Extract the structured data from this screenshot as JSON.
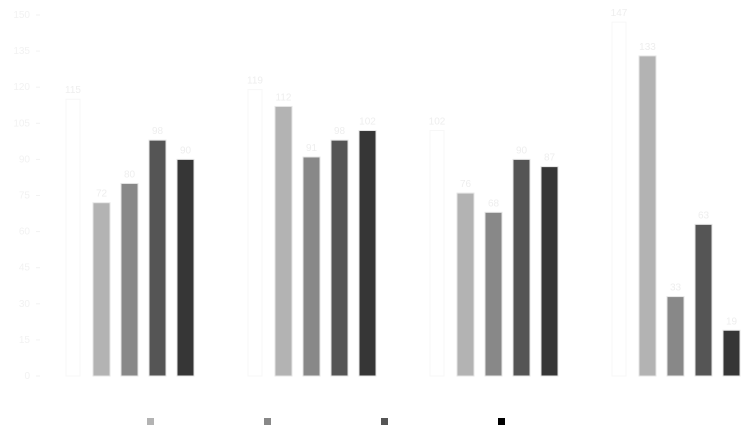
{
  "chart_data": {
    "type": "bar",
    "title": "",
    "xlabel": "",
    "ylabel": "",
    "ylim": [
      0,
      150
    ],
    "yticks": [
      0,
      15,
      30,
      45,
      60,
      75,
      90,
      105,
      120,
      135,
      150
    ],
    "grid": false,
    "legend_placement": "bottom",
    "categories": [
      "",
      "",
      "",
      ""
    ],
    "series": [
      {
        "color": "#ffffff",
        "values": [
          115,
          119,
          102,
          147
        ]
      },
      {
        "color": "#b3b3b3",
        "values": [
          72,
          112,
          76,
          133
        ]
      },
      {
        "color": "#888888",
        "values": [
          80,
          91,
          68,
          33
        ]
      },
      {
        "color": "#555555",
        "values": [
          98,
          98,
          90,
          63
        ]
      },
      {
        "color": "#363636",
        "values": [
          90,
          102,
          87,
          19
        ]
      }
    ],
    "legend_swatches": [
      "#b3b3b3",
      "#888888",
      "#555555",
      "#000000"
    ]
  }
}
